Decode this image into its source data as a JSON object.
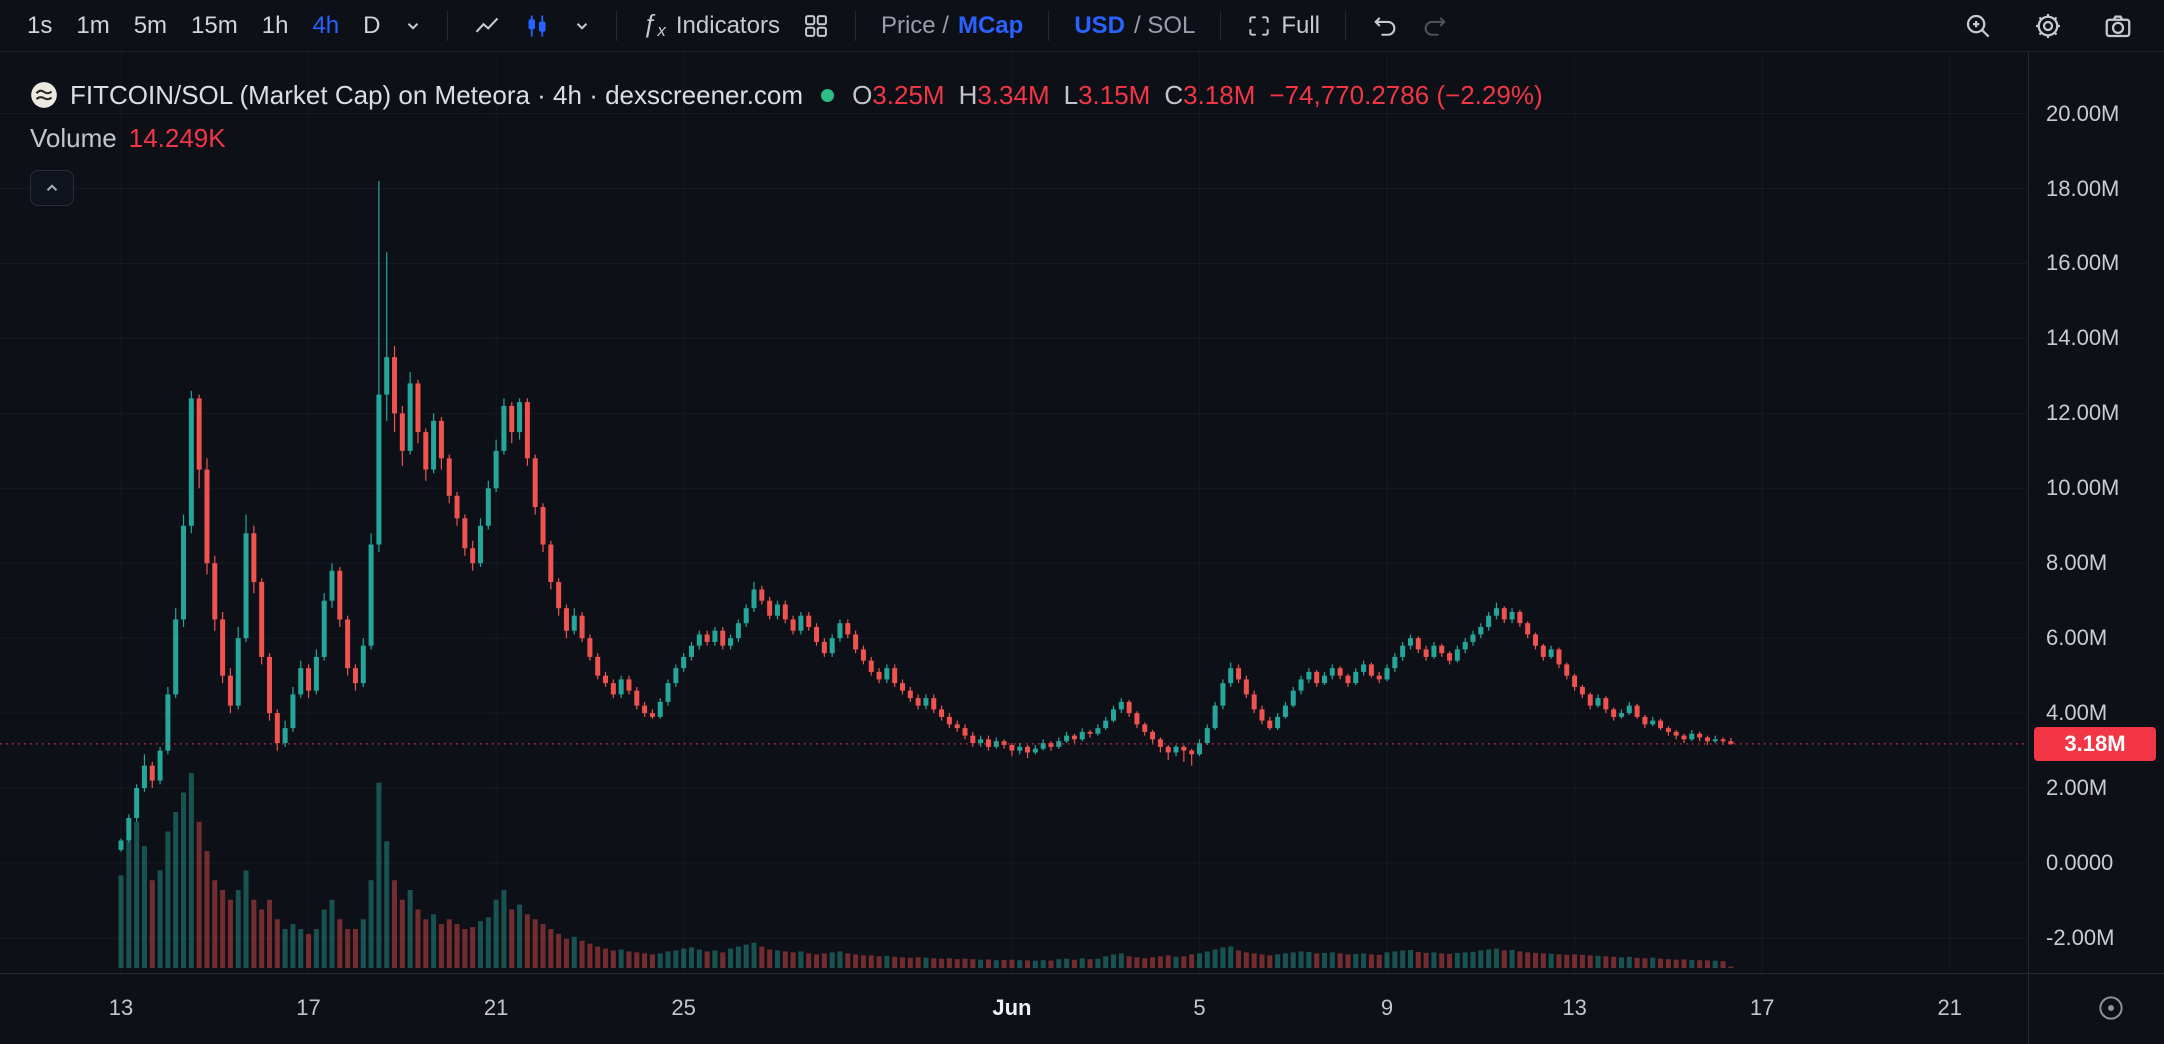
{
  "toolbar": {
    "timeframes": [
      {
        "label": "1s"
      },
      {
        "label": "1m"
      },
      {
        "label": "5m"
      },
      {
        "label": "15m"
      },
      {
        "label": "1h"
      },
      {
        "label": "4h",
        "active": true
      },
      {
        "label": "D"
      }
    ],
    "indicators_label": "Indicators",
    "price_mcap_prefix": "Price /",
    "price_mcap_active": "MCap",
    "usd_sol_active": "USD",
    "usd_sol_suffix": "/ SOL",
    "full_label": "Full"
  },
  "legend": {
    "title": "FITCOIN/SOL (Market Cap) on Meteora · 4h · dexscreener.com",
    "ohlc": {
      "o_label": "O",
      "o_value": "3.25M",
      "h_label": "H",
      "h_value": "3.34M",
      "l_label": "L",
      "l_value": "3.15M",
      "c_label": "C",
      "c_value": "3.18M",
      "change": "−74,770.2786 (−2.29%)"
    },
    "volume_label": "Volume",
    "volume_value": "14.249K"
  },
  "price_axis": {
    "ticks": [
      {
        "label": "20.00M",
        "value": 20
      },
      {
        "label": "18.00M",
        "value": 18
      },
      {
        "label": "16.00M",
        "value": 16
      },
      {
        "label": "14.00M",
        "value": 14
      },
      {
        "label": "12.00M",
        "value": 12
      },
      {
        "label": "10.00M",
        "value": 10
      },
      {
        "label": "8.00M",
        "value": 8
      },
      {
        "label": "6.00M",
        "value": 6
      },
      {
        "label": "4.00M",
        "value": 4
      },
      {
        "label": "2.00M",
        "value": 2
      },
      {
        "label": "0.0000",
        "value": 0
      },
      {
        "label": "-2.00M",
        "value": -2
      }
    ],
    "last_price": {
      "label": "3.18M",
      "value": 3.18
    }
  },
  "time_axis": {
    "ticks": [
      {
        "label": "13",
        "idx": 0
      },
      {
        "label": "17",
        "idx": 24
      },
      {
        "label": "21",
        "idx": 48
      },
      {
        "label": "25",
        "idx": 72
      },
      {
        "label": "Jun",
        "idx": 114,
        "major": true
      },
      {
        "label": "5",
        "idx": 138
      },
      {
        "label": "9",
        "idx": 162
      },
      {
        "label": "13",
        "idx": 186
      },
      {
        "label": "17",
        "idx": 210
      },
      {
        "label": "21",
        "idx": 234
      }
    ]
  },
  "colors": {
    "up": "#26a69a",
    "down": "#ef5350",
    "accent": "#2962ff",
    "red": "#f23645",
    "grid": "rgba(150,160,185,0.07)",
    "bg": "#0d1017",
    "live_dot": "#2ebd85"
  },
  "chart_data": {
    "type": "candlestick",
    "symbol": "FITCOIN/SOL",
    "interval": "4h",
    "price_unit": "market cap, millions",
    "volume_unit": "K",
    "ylim": [
      -3,
      21
    ],
    "x_range": [
      "May 13",
      "Jun 16"
    ],
    "candles": [
      [
        0.35,
        0.65,
        0.3,
        0.6,
        950
      ],
      [
        0.6,
        1.3,
        0.55,
        1.2,
        1300
      ],
      [
        1.2,
        2.1,
        1.1,
        2.0,
        1500
      ],
      [
        2.0,
        2.9,
        1.9,
        2.6,
        1250
      ],
      [
        2.6,
        2.7,
        2.0,
        2.2,
        900
      ],
      [
        2.2,
        3.1,
        2.1,
        3.0,
        1000
      ],
      [
        3.0,
        4.7,
        2.9,
        4.5,
        1400
      ],
      [
        4.5,
        6.8,
        4.4,
        6.5,
        1600
      ],
      [
        6.5,
        9.3,
        6.3,
        9.0,
        1800
      ],
      [
        9.0,
        12.6,
        8.8,
        12.4,
        2000
      ],
      [
        12.4,
        12.5,
        10.0,
        10.5,
        1500
      ],
      [
        10.5,
        10.8,
        7.7,
        8.0,
        1200
      ],
      [
        8.0,
        8.2,
        6.2,
        6.5,
        900
      ],
      [
        6.5,
        6.7,
        4.8,
        5.0,
        800
      ],
      [
        5.0,
        5.2,
        4.0,
        4.2,
        700
      ],
      [
        4.2,
        6.3,
        4.1,
        6.0,
        800
      ],
      [
        6.0,
        9.3,
        5.9,
        8.8,
        1000
      ],
      [
        8.8,
        9.0,
        7.2,
        7.5,
        700
      ],
      [
        7.5,
        7.6,
        5.3,
        5.5,
        600
      ],
      [
        5.5,
        5.6,
        3.8,
        4.0,
        700
      ],
      [
        4.0,
        4.1,
        3.0,
        3.2,
        500
      ],
      [
        3.2,
        3.8,
        3.1,
        3.6,
        400
      ],
      [
        3.6,
        4.7,
        3.5,
        4.5,
        450
      ],
      [
        4.5,
        5.4,
        4.4,
        5.2,
        400
      ],
      [
        5.2,
        5.3,
        4.4,
        4.6,
        350
      ],
      [
        4.6,
        5.7,
        4.5,
        5.5,
        400
      ],
      [
        5.5,
        7.2,
        5.4,
        7.0,
        600
      ],
      [
        7.0,
        8.0,
        6.8,
        7.8,
        700
      ],
      [
        7.8,
        7.9,
        6.3,
        6.5,
        500
      ],
      [
        6.5,
        6.6,
        5.0,
        5.2,
        400
      ],
      [
        5.2,
        5.3,
        4.6,
        4.8,
        400
      ],
      [
        4.8,
        6.0,
        4.7,
        5.8,
        500
      ],
      [
        5.8,
        8.8,
        5.7,
        8.5,
        900
      ],
      [
        8.5,
        18.2,
        8.3,
        12.5,
        1900
      ],
      [
        12.5,
        16.3,
        11.8,
        13.5,
        1300
      ],
      [
        13.5,
        13.8,
        11.5,
        12.0,
        900
      ],
      [
        12.0,
        12.2,
        10.6,
        11.0,
        700
      ],
      [
        11.0,
        13.1,
        10.9,
        12.8,
        800
      ],
      [
        12.8,
        12.9,
        11.2,
        11.5,
        600
      ],
      [
        11.5,
        11.6,
        10.2,
        10.5,
        500
      ],
      [
        10.5,
        12.0,
        10.4,
        11.8,
        550
      ],
      [
        11.8,
        11.9,
        10.5,
        10.8,
        450
      ],
      [
        10.8,
        10.9,
        9.6,
        9.8,
        500
      ],
      [
        9.8,
        9.9,
        9.0,
        9.2,
        450
      ],
      [
        9.2,
        9.3,
        8.2,
        8.4,
        400
      ],
      [
        8.4,
        8.6,
        7.8,
        8.0,
        420
      ],
      [
        8.0,
        9.2,
        7.9,
        9.0,
        480
      ],
      [
        9.0,
        10.2,
        8.9,
        10.0,
        520
      ],
      [
        10.0,
        11.3,
        9.9,
        11.0,
        700
      ],
      [
        11.0,
        12.4,
        10.9,
        12.2,
        800
      ],
      [
        12.2,
        12.3,
        11.2,
        11.5,
        600
      ],
      [
        11.5,
        12.4,
        11.3,
        12.3,
        650
      ],
      [
        12.3,
        12.4,
        10.6,
        10.8,
        550
      ],
      [
        10.8,
        10.9,
        9.3,
        9.5,
        500
      ],
      [
        9.5,
        9.6,
        8.3,
        8.5,
        450
      ],
      [
        8.5,
        8.6,
        7.3,
        7.5,
        400
      ],
      [
        7.5,
        7.6,
        6.6,
        6.8,
        350
      ],
      [
        6.8,
        6.9,
        6.0,
        6.2,
        300
      ],
      [
        6.2,
        6.8,
        6.1,
        6.6,
        320
      ],
      [
        6.6,
        6.7,
        5.9,
        6.0,
        280
      ],
      [
        6.0,
        6.1,
        5.4,
        5.5,
        250
      ],
      [
        5.5,
        5.6,
        4.9,
        5.0,
        220
      ],
      [
        5.0,
        5.1,
        4.7,
        4.8,
        200
      ],
      [
        4.8,
        4.9,
        4.4,
        4.5,
        180
      ],
      [
        4.5,
        5.0,
        4.4,
        4.9,
        190
      ],
      [
        4.9,
        5.0,
        4.5,
        4.6,
        170
      ],
      [
        4.6,
        4.7,
        4.1,
        4.2,
        160
      ],
      [
        4.2,
        4.3,
        3.9,
        4.0,
        150
      ],
      [
        4.0,
        4.1,
        3.85,
        3.9,
        140
      ],
      [
        3.9,
        4.4,
        3.85,
        4.3,
        150
      ],
      [
        4.3,
        4.9,
        4.2,
        4.8,
        170
      ],
      [
        4.8,
        5.3,
        4.7,
        5.2,
        180
      ],
      [
        5.2,
        5.6,
        5.1,
        5.5,
        200
      ],
      [
        5.5,
        5.9,
        5.4,
        5.8,
        210
      ],
      [
        5.8,
        6.2,
        5.7,
        6.1,
        190
      ],
      [
        6.1,
        6.2,
        5.8,
        5.9,
        170
      ],
      [
        5.9,
        6.3,
        5.8,
        6.2,
        180
      ],
      [
        6.2,
        6.3,
        5.7,
        5.8,
        160
      ],
      [
        5.8,
        6.1,
        5.7,
        6.0,
        200
      ],
      [
        6.0,
        6.5,
        5.9,
        6.4,
        220
      ],
      [
        6.4,
        6.9,
        6.3,
        6.8,
        240
      ],
      [
        6.8,
        7.5,
        6.7,
        7.3,
        260
      ],
      [
        7.3,
        7.4,
        6.9,
        7.0,
        220
      ],
      [
        7.0,
        7.1,
        6.5,
        6.6,
        190
      ],
      [
        6.6,
        7.0,
        6.5,
        6.9,
        180
      ],
      [
        6.9,
        7.0,
        6.4,
        6.5,
        170
      ],
      [
        6.5,
        6.6,
        6.1,
        6.2,
        160
      ],
      [
        6.2,
        6.7,
        6.1,
        6.6,
        170
      ],
      [
        6.6,
        6.7,
        6.2,
        6.3,
        150
      ],
      [
        6.3,
        6.4,
        5.8,
        5.9,
        140
      ],
      [
        5.9,
        6.0,
        5.5,
        5.6,
        150
      ],
      [
        5.6,
        6.1,
        5.5,
        6.0,
        160
      ],
      [
        6.0,
        6.5,
        5.9,
        6.4,
        170
      ],
      [
        6.4,
        6.5,
        6.0,
        6.1,
        150
      ],
      [
        6.1,
        6.2,
        5.6,
        5.7,
        140
      ],
      [
        5.7,
        5.8,
        5.3,
        5.4,
        130
      ],
      [
        5.4,
        5.5,
        5.0,
        5.1,
        130
      ],
      [
        5.1,
        5.2,
        4.8,
        4.9,
        120
      ],
      [
        4.9,
        5.3,
        4.8,
        5.2,
        125
      ],
      [
        5.2,
        5.3,
        4.7,
        4.8,
        115
      ],
      [
        4.8,
        4.9,
        4.5,
        4.6,
        110
      ],
      [
        4.6,
        4.7,
        4.3,
        4.4,
        105
      ],
      [
        4.4,
        4.5,
        4.1,
        4.2,
        110
      ],
      [
        4.2,
        4.5,
        4.1,
        4.4,
        105
      ],
      [
        4.4,
        4.5,
        4.0,
        4.1,
        100
      ],
      [
        4.1,
        4.2,
        3.8,
        3.9,
        95
      ],
      [
        3.9,
        4.0,
        3.6,
        3.7,
        100
      ],
      [
        3.7,
        3.8,
        3.5,
        3.6,
        90
      ],
      [
        3.6,
        3.7,
        3.3,
        3.4,
        95
      ],
      [
        3.4,
        3.5,
        3.1,
        3.2,
        90
      ],
      [
        3.2,
        3.4,
        3.1,
        3.3,
        85
      ],
      [
        3.3,
        3.4,
        3.0,
        3.1,
        88
      ],
      [
        3.1,
        3.35,
        3.05,
        3.25,
        80
      ],
      [
        3.25,
        3.3,
        3.05,
        3.15,
        82
      ],
      [
        3.15,
        3.2,
        2.85,
        3.0,
        85
      ],
      [
        3.0,
        3.2,
        2.9,
        3.1,
        80
      ],
      [
        3.1,
        3.15,
        2.8,
        2.95,
        78
      ],
      [
        2.95,
        3.15,
        2.9,
        3.05,
        75
      ],
      [
        3.05,
        3.3,
        3.0,
        3.2,
        80
      ],
      [
        3.2,
        3.25,
        3.0,
        3.1,
        76
      ],
      [
        3.1,
        3.35,
        3.05,
        3.25,
        90
      ],
      [
        3.25,
        3.5,
        3.2,
        3.4,
        95
      ],
      [
        3.4,
        3.45,
        3.2,
        3.3,
        85
      ],
      [
        3.3,
        3.6,
        3.25,
        3.5,
        100
      ],
      [
        3.5,
        3.55,
        3.35,
        3.45,
        90
      ],
      [
        3.45,
        3.7,
        3.4,
        3.6,
        95
      ],
      [
        3.6,
        3.9,
        3.55,
        3.8,
        120
      ],
      [
        3.8,
        4.2,
        3.75,
        4.1,
        140
      ],
      [
        4.1,
        4.4,
        4.0,
        4.3,
        150
      ],
      [
        4.3,
        4.35,
        3.9,
        4.0,
        120
      ],
      [
        4.0,
        4.05,
        3.6,
        3.7,
        110
      ],
      [
        3.7,
        3.75,
        3.4,
        3.5,
        100
      ],
      [
        3.5,
        3.55,
        3.2,
        3.3,
        110
      ],
      [
        3.3,
        3.35,
        2.95,
        3.1,
        120
      ],
      [
        3.1,
        3.15,
        2.75,
        2.95,
        130
      ],
      [
        2.95,
        3.15,
        2.85,
        3.1,
        115
      ],
      [
        3.1,
        3.15,
        2.7,
        3.0,
        120
      ],
      [
        3.0,
        3.05,
        2.6,
        2.9,
        140
      ],
      [
        2.9,
        3.3,
        2.85,
        3.2,
        150
      ],
      [
        3.2,
        3.7,
        3.15,
        3.6,
        170
      ],
      [
        3.6,
        4.3,
        3.55,
        4.2,
        190
      ],
      [
        4.2,
        4.9,
        4.1,
        4.8,
        210
      ],
      [
        4.8,
        5.35,
        4.7,
        5.2,
        220
      ],
      [
        5.2,
        5.3,
        4.8,
        4.9,
        180
      ],
      [
        4.9,
        5.0,
        4.4,
        4.5,
        160
      ],
      [
        4.5,
        4.6,
        4.0,
        4.1,
        150
      ],
      [
        4.1,
        4.2,
        3.7,
        3.8,
        140
      ],
      [
        3.8,
        3.9,
        3.55,
        3.6,
        130
      ],
      [
        3.6,
        4.0,
        3.55,
        3.9,
        140
      ],
      [
        3.9,
        4.3,
        3.85,
        4.2,
        150
      ],
      [
        4.2,
        4.7,
        4.15,
        4.6,
        160
      ],
      [
        4.6,
        5.0,
        4.5,
        4.9,
        170
      ],
      [
        4.9,
        5.2,
        4.8,
        5.1,
        165
      ],
      [
        5.1,
        5.15,
        4.7,
        4.8,
        150
      ],
      [
        4.8,
        5.1,
        4.75,
        5.0,
        155
      ],
      [
        5.0,
        5.3,
        4.9,
        5.2,
        160
      ],
      [
        5.2,
        5.25,
        4.9,
        5.0,
        150
      ],
      [
        5.0,
        5.05,
        4.7,
        4.8,
        140
      ],
      [
        4.8,
        5.2,
        4.75,
        5.1,
        145
      ],
      [
        5.1,
        5.4,
        5.0,
        5.3,
        150
      ],
      [
        5.3,
        5.35,
        4.95,
        5.0,
        140
      ],
      [
        5.0,
        5.1,
        4.8,
        4.9,
        135
      ],
      [
        4.9,
        5.3,
        4.85,
        5.2,
        160
      ],
      [
        5.2,
        5.6,
        5.1,
        5.5,
        170
      ],
      [
        5.5,
        5.9,
        5.4,
        5.8,
        180
      ],
      [
        5.8,
        6.1,
        5.7,
        6.0,
        185
      ],
      [
        6.0,
        6.05,
        5.6,
        5.7,
        165
      ],
      [
        5.7,
        5.8,
        5.4,
        5.5,
        155
      ],
      [
        5.5,
        5.9,
        5.45,
        5.8,
        160
      ],
      [
        5.8,
        5.85,
        5.5,
        5.6,
        150
      ],
      [
        5.6,
        5.65,
        5.3,
        5.4,
        145
      ],
      [
        5.4,
        5.8,
        5.35,
        5.7,
        155
      ],
      [
        5.7,
        6.0,
        5.6,
        5.9,
        160
      ],
      [
        5.9,
        6.2,
        5.8,
        6.1,
        165
      ],
      [
        6.1,
        6.4,
        6.0,
        6.3,
        180
      ],
      [
        6.3,
        6.7,
        6.2,
        6.6,
        190
      ],
      [
        6.6,
        6.95,
        6.5,
        6.8,
        200
      ],
      [
        6.8,
        6.85,
        6.4,
        6.5,
        180
      ],
      [
        6.5,
        6.8,
        6.4,
        6.7,
        185
      ],
      [
        6.7,
        6.75,
        6.3,
        6.4,
        170
      ],
      [
        6.4,
        6.45,
        6.0,
        6.1,
        160
      ],
      [
        6.1,
        6.15,
        5.7,
        5.8,
        155
      ],
      [
        5.8,
        5.85,
        5.4,
        5.5,
        150
      ],
      [
        5.5,
        5.8,
        5.45,
        5.7,
        145
      ],
      [
        5.7,
        5.75,
        5.2,
        5.3,
        140
      ],
      [
        5.3,
        5.35,
        4.9,
        5.0,
        135
      ],
      [
        5.0,
        5.05,
        4.6,
        4.7,
        140
      ],
      [
        4.7,
        4.75,
        4.4,
        4.5,
        135
      ],
      [
        4.5,
        4.55,
        4.1,
        4.2,
        130
      ],
      [
        4.2,
        4.5,
        4.15,
        4.4,
        125
      ],
      [
        4.4,
        4.45,
        4.0,
        4.1,
        120
      ],
      [
        4.1,
        4.15,
        3.8,
        3.9,
        115
      ],
      [
        3.9,
        4.1,
        3.85,
        4.0,
        110
      ],
      [
        4.0,
        4.3,
        3.95,
        4.2,
        115
      ],
      [
        4.2,
        4.25,
        3.85,
        3.9,
        105
      ],
      [
        3.9,
        3.95,
        3.6,
        3.7,
        100
      ],
      [
        3.7,
        3.9,
        3.65,
        3.8,
        105
      ],
      [
        3.8,
        3.85,
        3.55,
        3.6,
        95
      ],
      [
        3.6,
        3.65,
        3.4,
        3.5,
        90
      ],
      [
        3.5,
        3.55,
        3.3,
        3.4,
        85
      ],
      [
        3.4,
        3.45,
        3.2,
        3.3,
        88
      ],
      [
        3.3,
        3.55,
        3.25,
        3.45,
        82
      ],
      [
        3.45,
        3.5,
        3.25,
        3.35,
        80
      ],
      [
        3.35,
        3.4,
        3.15,
        3.25,
        78
      ],
      [
        3.25,
        3.4,
        3.2,
        3.3,
        75
      ],
      [
        3.3,
        3.35,
        3.15,
        3.25,
        70
      ],
      [
        3.25,
        3.34,
        3.15,
        3.18,
        14.249
      ]
    ]
  }
}
